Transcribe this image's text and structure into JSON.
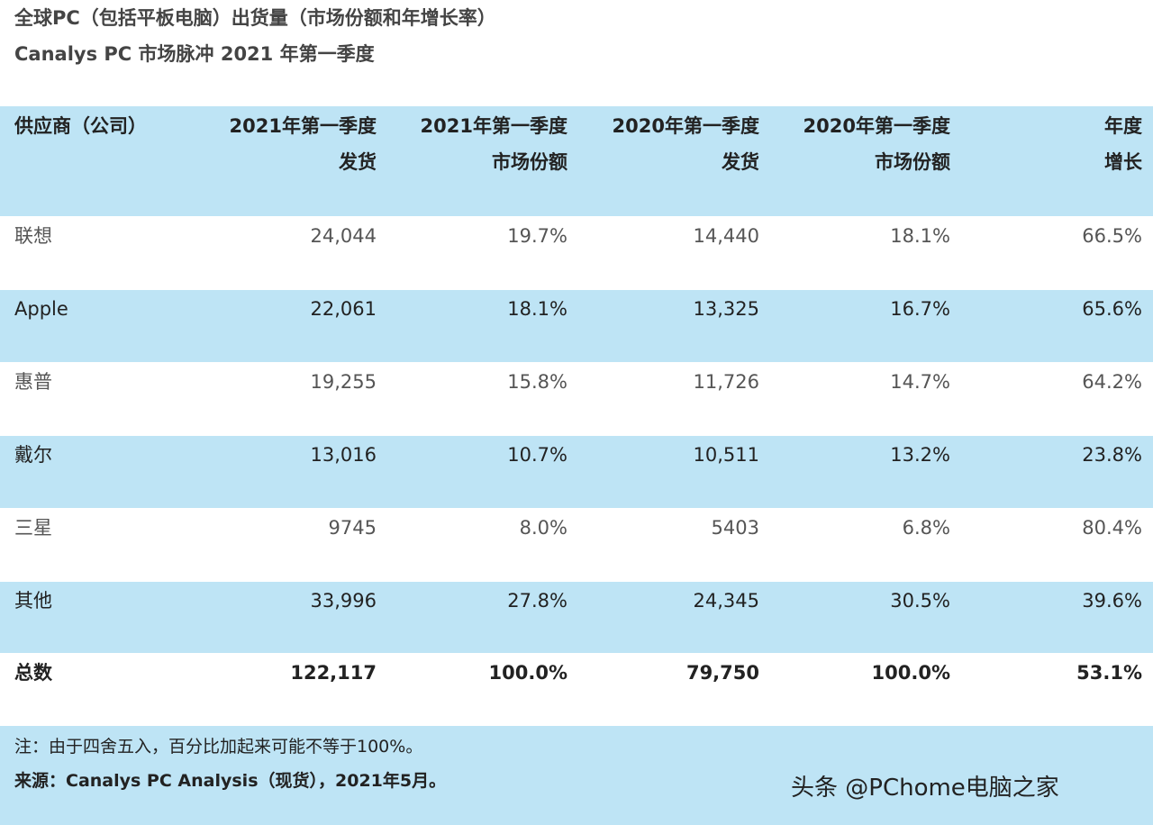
{
  "title": "全球PC（包括平板电脑）出货量（市场份额和年增长率）",
  "subtitle": "Canalys PC 市场脉冲 2021 年第一季度",
  "table": {
    "header": [
      [
        "供应商（公司）"
      ],
      [
        "2021年第一季度",
        "发货"
      ],
      [
        "2021年第一季度",
        "市场份额"
      ],
      [
        "2020年第一季度",
        "发货"
      ],
      [
        "2020年第一季度",
        "市场份额"
      ],
      [
        "年度",
        "增长"
      ]
    ],
    "rows": [
      [
        "联想",
        "24,044",
        "19.7%",
        "14,440",
        "18.1%",
        "66.5%"
      ],
      [
        "Apple",
        "22,061",
        "18.1%",
        "13,325",
        "16.7%",
        "65.6%"
      ],
      [
        "惠普",
        "19,255",
        "15.8%",
        "11,726",
        "14.7%",
        "64.2%"
      ],
      [
        "戴尔",
        "13,016",
        "10.7%",
        "10,511",
        "13.2%",
        "23.8%"
      ],
      [
        "三星",
        "9745",
        "8.0%",
        "5403",
        "6.8%",
        "80.4%"
      ],
      [
        "其他",
        "33,996",
        "27.8%",
        "24,345",
        "30.5%",
        "39.6%"
      ],
      [
        "总数",
        "122,117",
        "100.0%",
        "79,750",
        "100.0%",
        "53.1%"
      ]
    ]
  },
  "footer": {
    "note": "注：由于四舍五入，百分比加起来可能不等于100%。",
    "source": "来源：Canalys PC Analysis（现货），2021年5月。"
  },
  "watermark": "头条 @PChome电脑之家"
}
